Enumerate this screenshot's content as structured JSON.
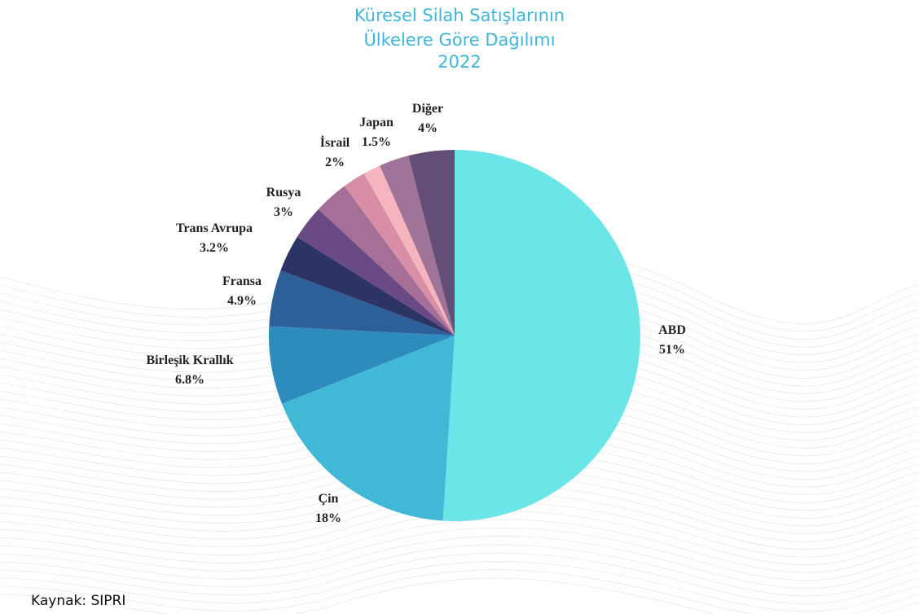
{
  "chart_data": {
    "type": "pie",
    "title": "Küresel Silah Satışlarının Ülkelere Göre Dağılımı",
    "subtitle": "2022",
    "categories": [
      "ABD",
      "Çin",
      "Birleşik Krallık",
      "Fransa",
      "Trans Avrupa",
      "Rusya",
      null,
      "İsrail",
      "Japan",
      null,
      "Diğer"
    ],
    "values": [
      51,
      18,
      6.8,
      4.9,
      3.2,
      3,
      3,
      2,
      1.5,
      2.6,
      4
    ],
    "value_labels": [
      "51%",
      "18%",
      "6.8%",
      "4.9%",
      "3.2%",
      "3%",
      null,
      "2%",
      "1.5%",
      null,
      "4%"
    ],
    "colors": [
      "#6ce5e8",
      "#42b8d7",
      "#2d8bbd",
      "#2d5f99",
      "#2c3465",
      "#6a4a84",
      "#a56f98",
      "#d98ea8",
      "#f6b4be",
      "#a07398",
      "#644e78"
    ],
    "source": "Kaynak: SIPRI"
  }
}
